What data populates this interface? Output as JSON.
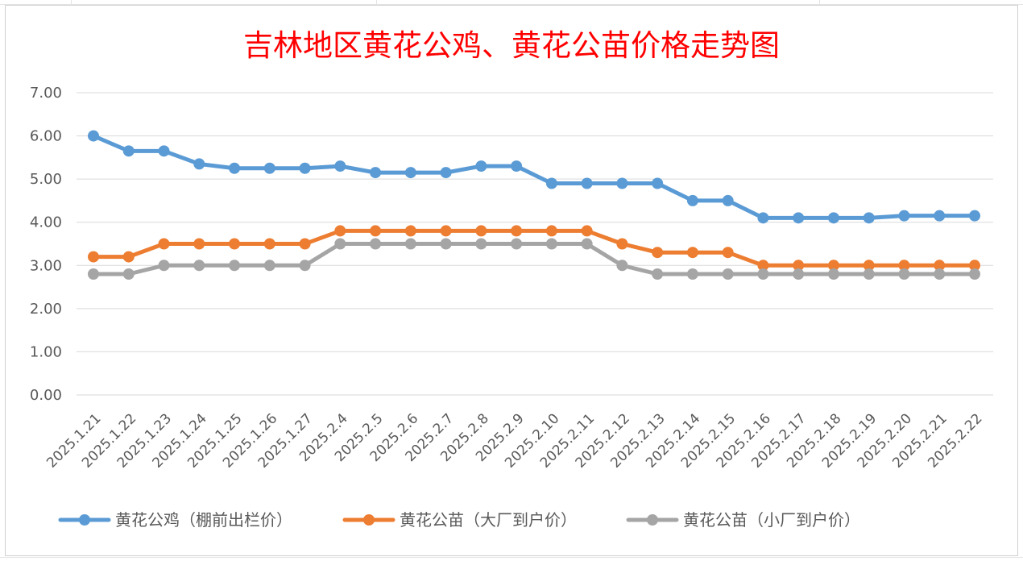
{
  "chart_data": {
    "type": "line",
    "title": "吉林地区黄花公鸡、黄花公苗价格走势图",
    "xlabel": "",
    "ylabel": "",
    "categories": [
      "2025.1.21",
      "2025.1.22",
      "2025.1.23",
      "2025.1.24",
      "2025.1.25",
      "2025.1.26",
      "2025.1.27",
      "2025.2.4",
      "2025.2.5",
      "2025.2.6",
      "2025.2.7",
      "2025.2.8",
      "2025.2.9",
      "2025.2.10",
      "2025.2.11",
      "2025.2.12",
      "2025.2.13",
      "2025.2.14",
      "2025.2.15",
      "2025.2.16",
      "2025.2.17",
      "2025.2.18",
      "2025.2.19",
      "2025.2.20",
      "2025.2.21",
      "2025.2.22"
    ],
    "ylim": [
      0,
      7
    ],
    "y_ticks": [
      "0.00",
      "1.00",
      "2.00",
      "3.00",
      "4.00",
      "5.00",
      "6.00",
      "7.00"
    ],
    "grid": true,
    "legend_position": "bottom",
    "series": [
      {
        "name": "黄花公鸡（棚前出栏价）",
        "color": "#5b9bd5",
        "values": [
          6.0,
          5.65,
          5.65,
          5.35,
          5.25,
          5.25,
          5.25,
          5.3,
          5.15,
          5.15,
          5.15,
          5.3,
          5.3,
          4.9,
          4.9,
          4.9,
          4.9,
          4.5,
          4.5,
          4.1,
          4.1,
          4.1,
          4.1,
          4.15,
          4.15,
          4.15
        ]
      },
      {
        "name": "黄花公苗（大厂到户价）",
        "color": "#ed7d31",
        "values": [
          3.2,
          3.2,
          3.5,
          3.5,
          3.5,
          3.5,
          3.5,
          3.8,
          3.8,
          3.8,
          3.8,
          3.8,
          3.8,
          3.8,
          3.8,
          3.5,
          3.3,
          3.3,
          3.3,
          3.0,
          3.0,
          3.0,
          3.0,
          3.0,
          3.0,
          3.0
        ]
      },
      {
        "name": "黄花公苗（小厂到户价）",
        "color": "#a5a5a5",
        "values": [
          2.8,
          2.8,
          3.0,
          3.0,
          3.0,
          3.0,
          3.0,
          3.5,
          3.5,
          3.5,
          3.5,
          3.5,
          3.5,
          3.5,
          3.5,
          3.0,
          2.8,
          2.8,
          2.8,
          2.8,
          2.8,
          2.8,
          2.8,
          2.8,
          2.8,
          2.8
        ]
      }
    ]
  }
}
